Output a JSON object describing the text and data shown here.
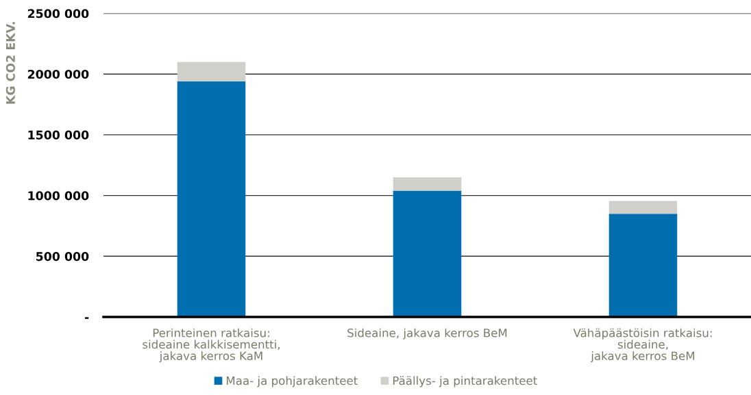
{
  "chart_data": {
    "type": "bar",
    "stacked": true,
    "ylabel": "KG CO2 EKV.",
    "categories": [
      "Perinteinen ratkaisu:\nsideaine kalkkisementti,\njakava kerros KaM",
      "Sideaine, jakava kerros BeM",
      "Vähäpäästöisin ratkaisu:\nsideaine,\njakava kerros BeM"
    ],
    "series": [
      {
        "name": "Maa- ja pohjarakenteet",
        "color": "#006eaf",
        "values": [
          1940000,
          1040000,
          850000
        ]
      },
      {
        "name": "Päällys- ja pintarakenteet",
        "color": "#d0cfca",
        "values": [
          160000,
          110000,
          105000
        ]
      }
    ],
    "ylim": [
      0,
      2500000
    ],
    "yticks": [
      {
        "value": 0,
        "label": "-"
      },
      {
        "value": 500000,
        "label": "500 000"
      },
      {
        "value": 1000000,
        "label": "1000 000"
      },
      {
        "value": 1500000,
        "label": "1500 000"
      },
      {
        "value": 2000000,
        "label": "2000 000"
      },
      {
        "value": 2500000,
        "label": "2500 000"
      }
    ],
    "grid": "y",
    "legend": "bottom"
  }
}
